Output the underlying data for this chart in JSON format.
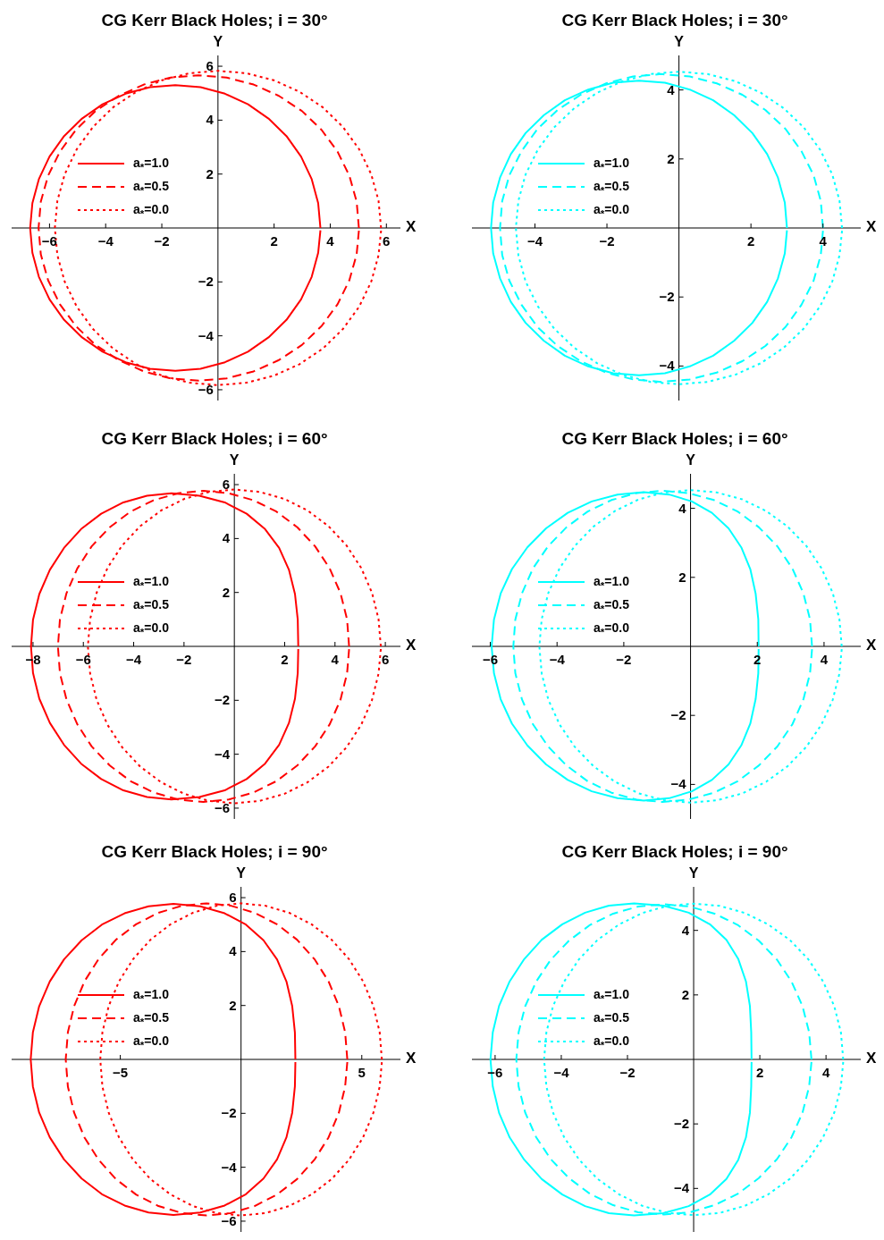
{
  "chart_data": [
    {
      "type": "line",
      "title": "CG Kerr Black Holes; i = 30°",
      "xlabel": "X",
      "ylabel": "Y",
      "xlim": [
        -7.35,
        6.5
      ],
      "ylim": [
        -6.4,
        6.4
      ],
      "xticks": [
        {
          "value": -6,
          "label": "−6"
        },
        {
          "value": -4,
          "label": "−4"
        },
        {
          "value": -2,
          "label": "−2"
        },
        2,
        4,
        6
      ],
      "yticks": [
        {
          "value": -6,
          "label": "−6"
        },
        {
          "value": -4,
          "label": "−4"
        },
        {
          "value": -2,
          "label": "−2"
        },
        2,
        4,
        6
      ],
      "legend": "left",
      "series": [
        {
          "name": "a$_{*}$=1.0",
          "color": "#ff0000",
          "line_style": "solid",
          "x": [
            3.65,
            3.57,
            3.34,
            2.96,
            2.44,
            1.8,
            1.07,
            0.25,
            -0.62,
            -1.52,
            -2.42,
            -3.29,
            -4.11,
            -4.84,
            -5.48,
            -6.0,
            -6.38,
            -6.61,
            -6.69,
            -6.61,
            -6.38,
            -6.0,
            -5.48,
            -4.84,
            -4.11,
            -3.29,
            -2.42,
            -1.52,
            -0.62,
            0.25,
            1.07,
            1.8,
            2.44,
            2.96,
            3.34,
            3.57,
            3.65
          ],
          "values": [
            0,
            0.92,
            1.81,
            2.65,
            3.41,
            4.06,
            4.59,
            4.98,
            5.22,
            5.3,
            5.22,
            4.98,
            4.59,
            4.06,
            3.41,
            2.65,
            1.81,
            0.92,
            0,
            -0.92,
            -1.81,
            -2.65,
            -3.41,
            -4.06,
            -4.59,
            -4.98,
            -5.22,
            -5.3,
            -5.22,
            -4.98,
            -4.59,
            -4.06,
            -3.41,
            -2.65,
            -1.81,
            -0.92,
            -0.09
          ]
        },
        {
          "name": "a$_{*}$=0.5",
          "color": "#ff0000",
          "line_style": "dashed",
          "x": [
            5.02,
            4.94,
            4.68,
            4.26,
            3.69,
            2.99,
            2.17,
            1.27,
            0.31,
            -0.69,
            -1.68,
            -2.64,
            -3.54,
            -4.36,
            -5.06,
            -5.63,
            -6.05,
            -6.31,
            -6.39,
            -6.31,
            -6.05,
            -5.63,
            -5.06,
            -4.36,
            -3.54,
            -2.64,
            -1.68,
            -0.69,
            0.31,
            1.27,
            2.17,
            2.99,
            3.69,
            4.26,
            4.68,
            4.94,
            5.02
          ],
          "values": [
            0,
            0.98,
            1.94,
            2.83,
            3.64,
            4.34,
            4.9,
            5.32,
            5.58,
            5.66,
            5.58,
            5.32,
            4.9,
            4.34,
            3.64,
            2.83,
            1.94,
            0.98,
            0,
            -0.98,
            -1.94,
            -2.83,
            -3.64,
            -4.34,
            -4.9,
            -5.32,
            -5.58,
            -5.66,
            -5.58,
            -5.32,
            -4.9,
            -4.34,
            -3.64,
            -2.83,
            -1.94,
            -0.98,
            -0.1
          ]
        },
        {
          "name": "a$_{*}$=0.0",
          "color": "#ff0000",
          "line_style": "dotted",
          "x": [
            5.81,
            5.72,
            5.46,
            5.03,
            4.45,
            3.74,
            2.91,
            1.99,
            1.01,
            0,
            -1.01,
            -1.99,
            -2.91,
            -3.74,
            -4.45,
            -5.03,
            -5.46,
            -5.72,
            -5.81,
            -5.72,
            -5.46,
            -5.03,
            -4.45,
            -3.74,
            -2.91,
            -1.99,
            -1.01,
            0,
            1.01,
            1.99,
            2.91,
            3.74,
            4.45,
            5.03,
            5.46,
            5.72,
            5.81
          ],
          "values": [
            0,
            1.01,
            1.99,
            2.92,
            3.75,
            4.47,
            5.05,
            5.48,
            5.74,
            5.83,
            5.74,
            5.48,
            5.05,
            4.47,
            3.75,
            2.92,
            1.99,
            1.01,
            0,
            -1.01,
            -1.99,
            -2.92,
            -3.75,
            -4.47,
            -5.05,
            -5.48,
            -5.74,
            -5.83,
            -5.74,
            -5.48,
            -5.05,
            -4.47,
            -3.75,
            -2.92,
            -1.99,
            -1.01,
            -0.1
          ]
        }
      ]
    },
    {
      "type": "line",
      "title": "CG Kerr Black Holes; i = 30°",
      "xlabel": "X",
      "ylabel": "Y",
      "xlim": [
        -5.75,
        5.05
      ],
      "ylim": [
        -5.0,
        5.0
      ],
      "xticks": [
        {
          "value": -4,
          "label": "−4"
        },
        {
          "value": -2,
          "label": "−2"
        },
        2,
        4
      ],
      "yticks": [
        {
          "value": -4,
          "label": "−4"
        },
        {
          "value": -2,
          "label": "−2"
        },
        2,
        4
      ],
      "legend": "left",
      "series": [
        {
          "name": "a$_{*}$=1.0",
          "color": "#00ffff",
          "line_style": "solid",
          "x": [
            3.0,
            2.94,
            2.75,
            2.45,
            2.04,
            1.53,
            0.95,
            0.3,
            -0.39,
            -1.11,
            -1.83,
            -2.52,
            -3.17,
            -3.75,
            -4.26,
            -4.67,
            -4.97,
            -5.16,
            -5.22,
            -5.16,
            -4.97,
            -4.67,
            -4.26,
            -3.75,
            -3.17,
            -2.52,
            -1.83,
            -1.11,
            -0.39,
            0.3,
            0.95,
            1.53,
            2.04,
            2.45,
            2.75,
            2.94,
            3.0
          ],
          "values": [
            0,
            0.74,
            1.46,
            2.14,
            2.75,
            3.27,
            3.7,
            4.01,
            4.21,
            4.27,
            4.21,
            4.01,
            3.7,
            3.27,
            2.75,
            2.14,
            1.46,
            0.74,
            0,
            -0.74,
            -1.46,
            -2.14,
            -2.75,
            -3.27,
            -3.7,
            -4.01,
            -4.21,
            -4.27,
            -4.21,
            -4.01,
            -3.7,
            -3.27,
            -2.75,
            -2.14,
            -1.46,
            -0.74,
            -0.07
          ]
        },
        {
          "name": "a$_{*}$=0.5",
          "color": "#00ffff",
          "line_style": "dashed",
          "x": [
            4.0,
            3.94,
            3.74,
            3.4,
            2.96,
            2.4,
            1.76,
            1.05,
            0.3,
            -0.49,
            -1.27,
            -2.02,
            -2.73,
            -3.37,
            -3.93,
            -4.37,
            -4.71,
            -4.91,
            -4.97,
            -4.91,
            -4.71,
            -4.37,
            -3.93,
            -3.37,
            -2.73,
            -2.02,
            -1.27,
            -0.49,
            0.3,
            1.05,
            1.76,
            2.4,
            2.96,
            3.4,
            3.74,
            3.94,
            4.0
          ],
          "values": [
            0,
            0.78,
            1.53,
            2.23,
            2.87,
            3.42,
            3.86,
            4.19,
            4.39,
            4.46,
            4.39,
            4.19,
            3.86,
            3.42,
            2.87,
            2.23,
            1.53,
            0.78,
            0,
            -0.78,
            -1.53,
            -2.23,
            -2.87,
            -3.42,
            -3.86,
            -4.19,
            -4.39,
            -4.46,
            -4.39,
            -4.19,
            -3.86,
            -3.42,
            -2.87,
            -2.23,
            -1.53,
            -0.78,
            -0.08
          ]
        },
        {
          "name": "a$_{*}$=0.0",
          "color": "#00ffff",
          "line_style": "dotted",
          "x": [
            4.53,
            4.46,
            4.26,
            3.92,
            3.47,
            2.91,
            2.27,
            1.55,
            0.79,
            0,
            -0.79,
            -1.55,
            -2.27,
            -2.91,
            -3.47,
            -3.92,
            -4.26,
            -4.46,
            -4.53,
            -4.46,
            -4.26,
            -3.92,
            -3.47,
            -2.91,
            -2.27,
            -1.55,
            -0.79,
            0,
            0.79,
            1.55,
            2.27,
            2.91,
            3.47,
            3.92,
            4.26,
            4.46,
            4.53
          ],
          "values": [
            0,
            0.79,
            1.55,
            2.27,
            2.91,
            3.47,
            3.92,
            4.26,
            4.46,
            4.53,
            4.46,
            4.26,
            3.92,
            3.47,
            2.91,
            2.27,
            1.55,
            0.79,
            0,
            -0.79,
            -1.55,
            -2.27,
            -2.91,
            -3.47,
            -3.92,
            -4.26,
            -4.46,
            -4.53,
            -4.46,
            -4.26,
            -3.92,
            -3.47,
            -2.91,
            -2.27,
            -1.55,
            -0.79,
            -0.08
          ]
        }
      ]
    },
    {
      "type": "line",
      "title": "CG Kerr Black Holes; i = 60°",
      "xlabel": "X",
      "ylabel": "Y",
      "xlim": [
        -8.85,
        6.6
      ],
      "ylim": [
        -6.4,
        6.4
      ],
      "xticks": [
        {
          "value": -8,
          "label": "−8"
        },
        {
          "value": -6,
          "label": "−6"
        },
        {
          "value": -4,
          "label": "−4"
        },
        {
          "value": -2,
          "label": "−2"
        },
        2,
        4,
        6
      ],
      "yticks": [
        {
          "value": -6,
          "label": "−6"
        },
        {
          "value": -4,
          "label": "−4"
        },
        {
          "value": -2,
          "label": "−2"
        },
        2,
        4,
        6
      ],
      "legend": "left",
      "series": [
        {
          "name": "a$_{*}$=1.0",
          "color": "#ff0000",
          "line_style": "solid",
          "x": [
            2.54,
            2.52,
            2.41,
            2.17,
            1.78,
            1.22,
            0.49,
            -0.38,
            -1.39,
            -2.5,
            -3.47,
            -4.41,
            -5.29,
            -6.09,
            -6.77,
            -7.33,
            -7.75,
            -8.0,
            -8.08,
            -8.0,
            -7.75,
            -7.33,
            -6.77,
            -6.09,
            -5.29,
            -4.41,
            -3.47,
            -2.5,
            -1.39,
            -0.38,
            0.49,
            1.22,
            1.78,
            2.17,
            2.41,
            2.52,
            2.54
          ],
          "values": [
            0,
            0.99,
            1.94,
            2.84,
            3.65,
            4.35,
            4.92,
            5.34,
            5.59,
            5.68,
            5.59,
            5.34,
            4.92,
            4.35,
            3.65,
            2.84,
            1.94,
            0.99,
            0,
            -0.99,
            -1.94,
            -2.84,
            -3.65,
            -4.35,
            -4.92,
            -5.34,
            -5.59,
            -5.68,
            -5.59,
            -5.34,
            -4.92,
            -4.35,
            -3.65,
            -2.84,
            -1.94,
            -0.99,
            -0.1
          ]
        },
        {
          "name": "a$_{*}$=0.5",
          "color": "#ff0000",
          "line_style": "dashed",
          "x": [
            4.56,
            4.48,
            4.22,
            3.79,
            3.21,
            2.5,
            1.67,
            0.76,
            -0.22,
            -1.23,
            -2.24,
            -3.21,
            -4.12,
            -4.95,
            -5.67,
            -6.24,
            -6.67,
            -6.93,
            -7.01,
            -6.93,
            -6.67,
            -6.24,
            -5.67,
            -4.95,
            -4.12,
            -3.21,
            -2.24,
            -1.23,
            -0.22,
            0.76,
            1.67,
            2.5,
            3.21,
            3.79,
            4.22,
            4.48,
            4.56
          ],
          "values": [
            0,
            1.0,
            1.97,
            2.89,
            3.71,
            4.42,
            5.0,
            5.42,
            5.68,
            5.77,
            5.68,
            5.42,
            5.0,
            4.42,
            3.71,
            2.89,
            1.97,
            1.0,
            0,
            -1.0,
            -1.97,
            -2.89,
            -3.71,
            -4.42,
            -5.0,
            -5.42,
            -5.68,
            -5.77,
            -5.68,
            -5.42,
            -5.0,
            -4.42,
            -3.71,
            -2.89,
            -1.97,
            -1.0,
            -0.1
          ]
        },
        {
          "name": "a$_{*}$=0.0",
          "color": "#ff0000",
          "line_style": "dotted",
          "x": [
            5.82,
            5.73,
            5.47,
            5.04,
            4.46,
            3.74,
            2.91,
            1.99,
            1.01,
            0,
            -1.01,
            -1.99,
            -2.91,
            -3.74,
            -4.46,
            -5.04,
            -5.47,
            -5.73,
            -5.82,
            -5.73,
            -5.47,
            -5.04,
            -4.46,
            -3.74,
            -2.91,
            -1.99,
            -1.01,
            0,
            1.01,
            1.99,
            2.91,
            3.74,
            4.46,
            5.04,
            5.47,
            5.73,
            5.82
          ],
          "values": [
            0,
            1.01,
            1.99,
            2.91,
            3.74,
            4.46,
            5.04,
            5.47,
            5.73,
            5.82,
            5.73,
            5.47,
            5.04,
            4.46,
            3.74,
            2.91,
            1.99,
            1.01,
            0,
            -1.01,
            -1.99,
            -2.91,
            -3.74,
            -4.46,
            -5.04,
            -5.47,
            -5.73,
            -5.82,
            -5.73,
            -5.47,
            -5.04,
            -4.46,
            -3.74,
            -2.91,
            -1.99,
            -1.01,
            -0.1
          ]
        }
      ]
    },
    {
      "type": "line",
      "title": "CG Kerr Black Holes; i = 60°",
      "xlabel": "X",
      "ylabel": "Y",
      "xlim": [
        -6.55,
        5.1
      ],
      "ylim": [
        -5.0,
        5.0
      ],
      "xticks": [
        {
          "value": -6,
          "label": "−6"
        },
        {
          "value": -4,
          "label": "−4"
        },
        {
          "value": -2,
          "label": "−2"
        },
        2,
        4
      ],
      "yticks": [
        {
          "value": -4,
          "label": "−4"
        },
        {
          "value": -2,
          "label": "−2"
        },
        2,
        4
      ],
      "legend": "left",
      "series": [
        {
          "name": "a$_{*}$=1.0",
          "color": "#00ffff",
          "line_style": "solid",
          "x": [
            2.04,
            2.03,
            1.95,
            1.79,
            1.52,
            1.14,
            0.64,
            0.04,
            -0.64,
            -1.4,
            -2.19,
            -2.96,
            -3.68,
            -4.33,
            -4.89,
            -5.35,
            -5.69,
            -5.89,
            -5.96,
            -5.89,
            -5.69,
            -5.35,
            -4.89,
            -4.33,
            -3.68,
            -2.96,
            -2.19,
            -1.4,
            -0.64,
            0.04,
            0.64,
            1.14,
            1.52,
            1.79,
            1.95,
            2.03,
            2.04
          ],
          "values": [
            0,
            0.78,
            1.53,
            2.24,
            2.87,
            3.42,
            3.87,
            4.2,
            4.4,
            4.47,
            4.4,
            4.2,
            3.87,
            3.42,
            2.87,
            2.24,
            1.53,
            0.78,
            0,
            -0.78,
            -1.53,
            -2.24,
            -2.87,
            -3.42,
            -3.87,
            -4.2,
            -4.4,
            -4.47,
            -4.4,
            -4.2,
            -3.87,
            -3.42,
            -2.87,
            -2.24,
            -1.53,
            -0.78,
            -0.08
          ]
        },
        {
          "name": "a$_{*}$=0.5",
          "color": "#00ffff",
          "line_style": "dashed",
          "x": [
            3.64,
            3.58,
            3.38,
            3.05,
            2.6,
            2.05,
            1.41,
            0.7,
            -0.06,
            -0.84,
            -1.62,
            -2.37,
            -3.08,
            -3.72,
            -4.27,
            -4.72,
            -5.05,
            -5.25,
            -5.31,
            -5.25,
            -5.05,
            -4.72,
            -4.27,
            -3.72,
            -3.08,
            -2.37,
            -1.62,
            -0.84,
            -0.06,
            0.7,
            1.41,
            2.05,
            2.6,
            3.05,
            3.38,
            3.58,
            3.64
          ],
          "values": [
            0,
            0.78,
            1.54,
            2.26,
            2.9,
            3.45,
            3.91,
            4.24,
            4.44,
            4.51,
            4.44,
            4.24,
            3.91,
            3.45,
            2.9,
            2.26,
            1.54,
            0.78,
            0,
            -0.78,
            -1.54,
            -2.26,
            -2.9,
            -3.45,
            -3.91,
            -4.24,
            -4.44,
            -4.51,
            -4.44,
            -4.24,
            -3.91,
            -3.45,
            -2.9,
            -2.26,
            -1.54,
            -0.78,
            -0.08
          ]
        },
        {
          "name": "a$_{*}$=0.0",
          "color": "#00ffff",
          "line_style": "dotted",
          "x": [
            4.53,
            4.46,
            4.26,
            3.92,
            3.47,
            2.91,
            2.27,
            1.55,
            0.79,
            0,
            -0.79,
            -1.55,
            -2.27,
            -2.91,
            -3.47,
            -3.92,
            -4.26,
            -4.46,
            -4.53,
            -4.46,
            -4.26,
            -3.92,
            -3.47,
            -2.91,
            -2.27,
            -1.55,
            -0.79,
            0,
            0.79,
            1.55,
            2.27,
            2.91,
            3.47,
            3.92,
            4.26,
            4.46,
            4.53
          ],
          "values": [
            0,
            0.79,
            1.55,
            2.27,
            2.91,
            3.47,
            3.92,
            4.26,
            4.46,
            4.53,
            4.46,
            4.26,
            3.92,
            3.47,
            2.91,
            2.27,
            1.55,
            0.79,
            0,
            -0.79,
            -1.55,
            -2.27,
            -2.91,
            -3.47,
            -3.92,
            -4.26,
            -4.46,
            -4.53,
            -4.46,
            -4.26,
            -3.92,
            -3.47,
            -2.91,
            -2.27,
            -1.55,
            -0.79,
            -0.08
          ]
        }
      ]
    },
    {
      "type": "line",
      "title": "CG Kerr Black Holes; i = 90°",
      "xlabel": "X",
      "ylabel": "Y",
      "xlim": [
        -9.5,
        6.6
      ],
      "ylim": [
        -6.4,
        6.4
      ],
      "xticks": [
        {
          "value": -5,
          "label": "−5"
        },
        5
      ],
      "yticks": [
        {
          "value": -6,
          "label": "−6"
        },
        {
          "value": -4,
          "label": "−4"
        },
        {
          "value": -2,
          "label": "−2"
        },
        2,
        4,
        6
      ],
      "legend": "left",
      "series": [
        {
          "name": "a$_{*}$=1.0",
          "color": "#ff0000",
          "line_style": "solid",
          "x": [
            2.25,
            2.23,
            2.12,
            1.88,
            1.49,
            0.93,
            0.2,
            -0.68,
            -1.69,
            -2.8,
            -3.83,
            -4.82,
            -5.76,
            -6.6,
            -7.33,
            -7.92,
            -8.36,
            -8.62,
            -8.71,
            -8.62,
            -8.36,
            -7.92,
            -7.33,
            -6.6,
            -5.76,
            -4.82,
            -3.83,
            -2.8,
            -1.69,
            -0.68,
            0.2,
            0.93,
            1.49,
            1.88,
            2.12,
            2.23,
            2.25
          ],
          "values": [
            0,
            1.0,
            1.97,
            2.89,
            3.71,
            4.42,
            5.0,
            5.42,
            5.68,
            5.77,
            5.68,
            5.42,
            5.0,
            4.42,
            3.71,
            2.89,
            1.97,
            1.0,
            0,
            -1.0,
            -1.97,
            -2.89,
            -3.71,
            -4.42,
            -5.0,
            -5.42,
            -5.68,
            -5.77,
            -5.68,
            -5.42,
            -5.0,
            -4.42,
            -3.71,
            -2.89,
            -1.97,
            -1.0,
            -0.1
          ]
        },
        {
          "name": "a$_{*}$=0.5",
          "color": "#ff0000",
          "line_style": "dashed",
          "x": [
            4.4,
            4.31,
            4.05,
            3.62,
            3.04,
            2.32,
            1.49,
            0.56,
            -0.42,
            -1.43,
            -2.44,
            -3.42,
            -4.35,
            -5.18,
            -5.9,
            -6.48,
            -6.91,
            -7.17,
            -7.26,
            -7.17,
            -6.91,
            -6.48,
            -5.9,
            -5.18,
            -4.35,
            -3.42,
            -2.44,
            -1.43,
            -0.42,
            0.56,
            1.49,
            2.32,
            3.04,
            3.62,
            4.05,
            4.31,
            4.4
          ],
          "values": [
            0,
            1.01,
            1.98,
            2.9,
            3.72,
            4.44,
            5.01,
            5.44,
            5.7,
            5.79,
            5.7,
            5.44,
            5.01,
            4.44,
            3.72,
            2.9,
            1.98,
            1.01,
            0,
            -1.01,
            -1.98,
            -2.9,
            -3.72,
            -4.44,
            -5.01,
            -5.44,
            -5.7,
            -5.79,
            -5.7,
            -5.44,
            -5.01,
            -4.44,
            -3.72,
            -2.9,
            -1.98,
            -1.01,
            -0.1
          ]
        },
        {
          "name": "a$_{*}$=0.0",
          "color": "#ff0000",
          "line_style": "dotted",
          "x": [
            5.83,
            5.74,
            5.48,
            5.05,
            4.47,
            3.75,
            2.92,
            1.99,
            1.01,
            0,
            -1.01,
            -1.99,
            -2.92,
            -3.75,
            -4.47,
            -5.05,
            -5.48,
            -5.74,
            -5.83,
            -5.74,
            -5.48,
            -5.05,
            -4.47,
            -3.75,
            -2.92,
            -1.99,
            -1.01,
            0,
            1.01,
            1.99,
            2.92,
            3.75,
            4.47,
            5.05,
            5.48,
            5.74,
            5.83
          ],
          "values": [
            0,
            1.01,
            1.98,
            2.9,
            3.72,
            4.44,
            5.01,
            5.44,
            5.7,
            5.79,
            5.7,
            5.44,
            5.01,
            4.44,
            3.72,
            2.9,
            1.98,
            1.01,
            0,
            -1.01,
            -1.98,
            -2.9,
            -3.72,
            -4.44,
            -5.01,
            -5.44,
            -5.7,
            -5.79,
            -5.7,
            -5.44,
            -5.01,
            -4.44,
            -3.72,
            -2.9,
            -1.98,
            -1.01,
            -0.1
          ]
        }
      ]
    },
    {
      "type": "line",
      "title": "CG Kerr Black Holes; i = 90°",
      "xlabel": "X",
      "ylabel": "Y",
      "xlim": [
        -6.7,
        5.05
      ],
      "ylim": [
        -5.35,
        5.35
      ],
      "xticks": [
        {
          "value": -6,
          "label": "−6"
        },
        {
          "value": -4,
          "label": "−4"
        },
        {
          "value": -2,
          "label": "−2"
        },
        2,
        4
      ],
      "yticks": [
        {
          "value": -4,
          "label": "−4"
        },
        {
          "value": -2,
          "label": "−2"
        },
        2,
        4
      ],
      "legend": "left",
      "series": [
        {
          "name": "a$_{*}$=1.0",
          "color": "#00ffff",
          "line_style": "solid",
          "x": [
            1.75,
            1.74,
            1.7,
            1.58,
            1.35,
            0.99,
            0.49,
            -0.15,
            -0.92,
            -1.8,
            -2.56,
            -3.28,
            -3.97,
            -4.59,
            -5.12,
            -5.56,
            -5.88,
            -6.07,
            -6.14,
            -6.07,
            -5.88,
            -5.56,
            -5.12,
            -4.59,
            -3.97,
            -3.28,
            -2.56,
            -1.8,
            -0.92,
            -0.15,
            0.49,
            0.99,
            1.35,
            1.58,
            1.7,
            1.74,
            1.75
          ],
          "values": [
            0,
            0.84,
            1.66,
            2.42,
            3.11,
            3.71,
            4.19,
            4.55,
            4.77,
            4.84,
            4.77,
            4.55,
            4.19,
            3.71,
            3.11,
            2.42,
            1.66,
            0.84,
            0,
            -0.84,
            -1.66,
            -2.42,
            -3.11,
            -3.71,
            -4.19,
            -4.55,
            -4.77,
            -4.84,
            -4.77,
            -4.55,
            -4.19,
            -3.71,
            -3.11,
            -2.42,
            -1.66,
            -0.84,
            -0.08
          ]
        },
        {
          "name": "a$_{*}$=0.5",
          "color": "#00ffff",
          "line_style": "dashed",
          "x": [
            3.56,
            3.49,
            3.29,
            2.96,
            2.52,
            1.97,
            1.33,
            0.63,
            -0.12,
            -0.9,
            -1.68,
            -2.43,
            -3.13,
            -3.77,
            -4.32,
            -4.76,
            -5.09,
            -5.29,
            -5.36,
            -5.29,
            -5.09,
            -4.76,
            -4.32,
            -3.77,
            -3.13,
            -2.43,
            -1.68,
            -0.9,
            -0.12,
            0.63,
            1.33,
            1.97,
            2.52,
            2.96,
            3.29,
            3.49,
            3.56
          ],
          "values": [
            0,
            0.84,
            1.65,
            2.41,
            3.09,
            3.68,
            4.17,
            4.52,
            4.74,
            4.81,
            4.74,
            4.52,
            4.17,
            3.68,
            3.09,
            2.41,
            1.65,
            0.84,
            0,
            -0.84,
            -1.65,
            -2.41,
            -3.09,
            -3.68,
            -4.17,
            -4.52,
            -4.74,
            -4.81,
            -4.74,
            -4.52,
            -4.17,
            -3.68,
            -3.09,
            -2.41,
            -1.65,
            -0.84,
            -0.08
          ]
        },
        {
          "name": "a$_{*}$=0.0",
          "color": "#00ffff",
          "line_style": "dotted",
          "x": [
            4.52,
            4.45,
            4.25,
            3.91,
            3.46,
            2.91,
            2.26,
            1.55,
            0.79,
            0,
            -0.79,
            -1.55,
            -2.26,
            -2.91,
            -3.46,
            -3.91,
            -4.25,
            -4.45,
            -4.52,
            -4.45,
            -4.25,
            -3.91,
            -3.46,
            -2.91,
            -2.26,
            -1.55,
            -0.79,
            0,
            0.79,
            1.55,
            2.26,
            2.91,
            3.46,
            3.91,
            4.25,
            4.45,
            4.52
          ],
          "values": [
            0,
            0.84,
            1.65,
            2.42,
            3.11,
            3.7,
            4.18,
            4.54,
            4.76,
            4.83,
            4.76,
            4.54,
            4.18,
            3.7,
            3.11,
            2.42,
            1.65,
            0.84,
            0,
            -0.84,
            -1.65,
            -2.42,
            -3.11,
            -3.7,
            -4.18,
            -4.54,
            -4.76,
            -4.83,
            -4.76,
            -4.54,
            -4.18,
            -3.7,
            -3.11,
            -2.42,
            -1.65,
            -0.84,
            -0.08
          ]
        }
      ]
    }
  ]
}
